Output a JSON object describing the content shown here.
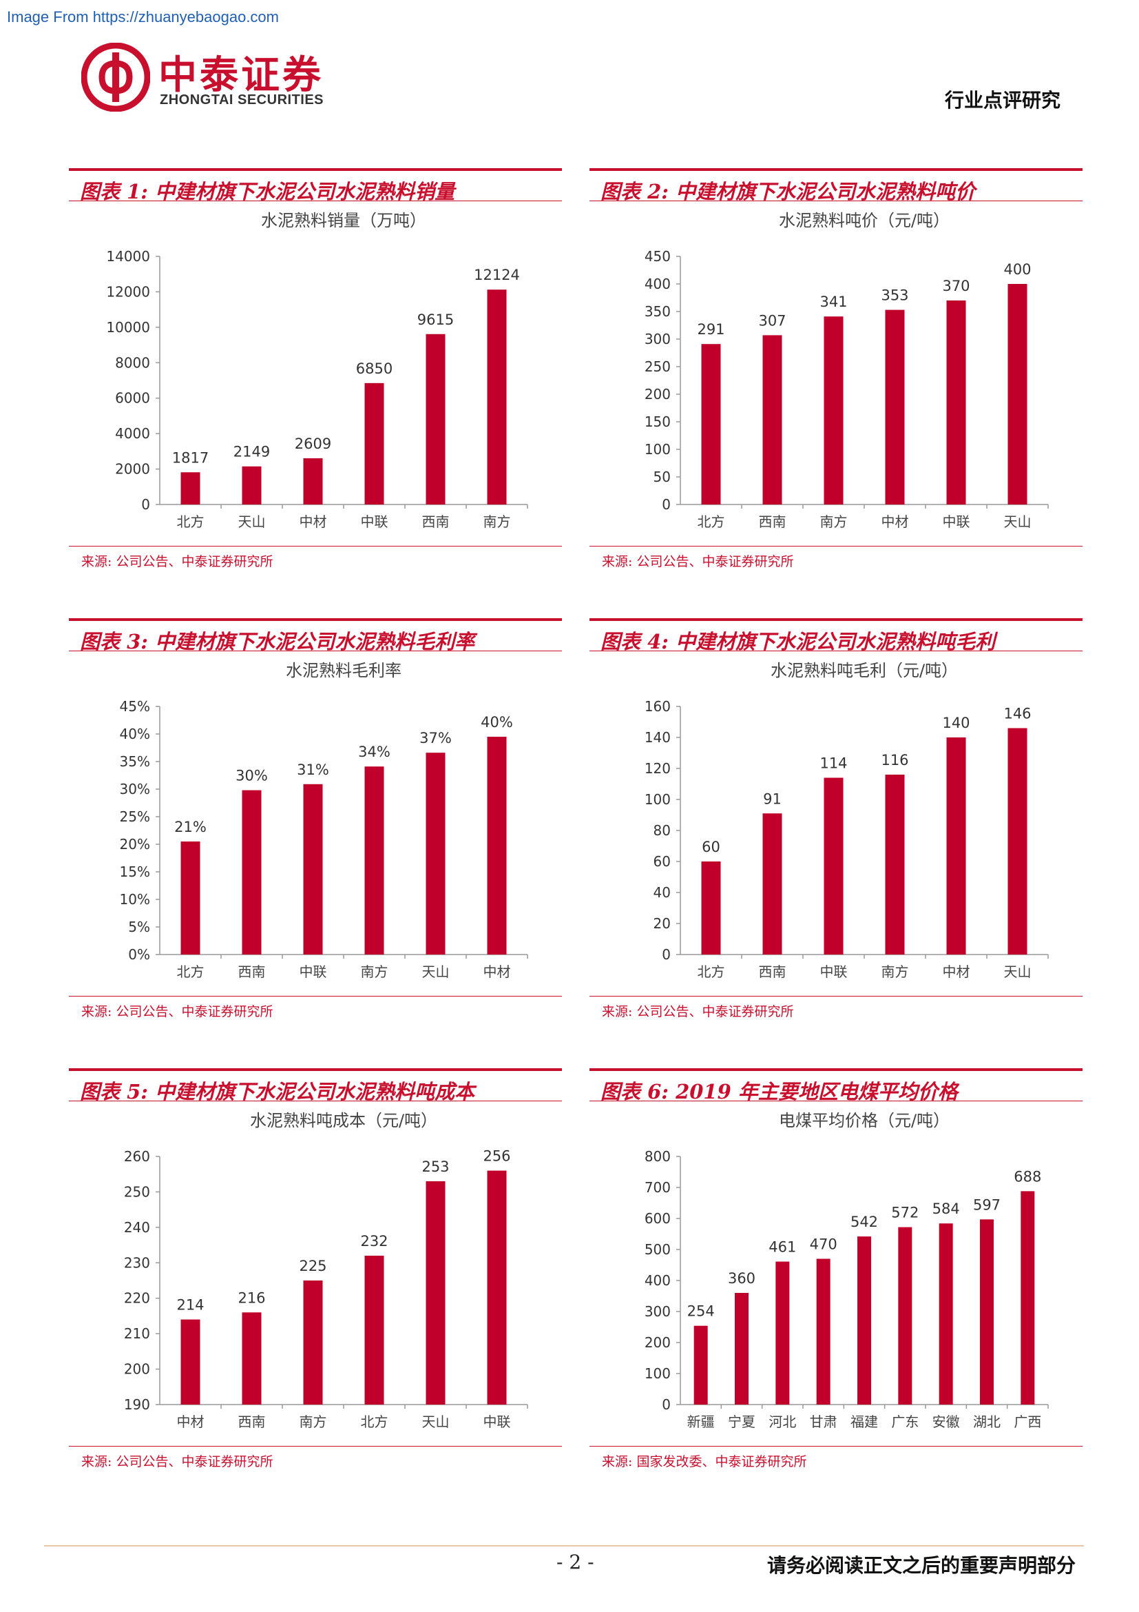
{
  "watermark": "Image From https://zhuanyebaogao.com",
  "logo": {
    "name_cn": "中泰证券",
    "name_en": "ZHONGTAI SECURITIES"
  },
  "header": {
    "right_label": "行业点评研究"
  },
  "colors": {
    "accent": "#c8102e",
    "bar": "#c0002a"
  },
  "panels": [
    {
      "title": "图表 1: 中建材旗下水泥公司水泥熟料销量",
      "source": "来源: 公司公告、中泰证券研究所",
      "chart_data": {
        "type": "bar",
        "title": "水泥熟料销量（万吨）",
        "categories": [
          "北方",
          "天山",
          "中材",
          "中联",
          "西南",
          "南方"
        ],
        "values": [
          1817,
          2149,
          2609,
          6850,
          9615,
          12124
        ],
        "labels": [
          "1817",
          "2149",
          "2609",
          "6850",
          "9615",
          "12124"
        ],
        "ylim": [
          0,
          14000
        ],
        "yticks": [
          "0",
          "2000",
          "4000",
          "6000",
          "8000",
          "10000",
          "12000",
          "14000"
        ],
        "grid": false
      }
    },
    {
      "title": "图表 2: 中建材旗下水泥公司水泥熟料吨价",
      "source": "来源: 公司公告、中泰证券研究所",
      "chart_data": {
        "type": "bar",
        "title": "水泥熟料吨价（元/吨）",
        "categories": [
          "北方",
          "西南",
          "南方",
          "中材",
          "中联",
          "天山"
        ],
        "values": [
          291,
          307,
          341,
          353,
          370,
          400
        ],
        "labels": [
          "291",
          "307",
          "341",
          "353",
          "370",
          "400"
        ],
        "ylim": [
          0,
          450
        ],
        "yticks": [
          "0",
          "50",
          "100",
          "150",
          "200",
          "250",
          "300",
          "350",
          "400",
          "450"
        ],
        "grid": false
      }
    },
    {
      "title": "图表 3: 中建材旗下水泥公司水泥熟料毛利率",
      "source": "来源: 公司公告、中泰证券研究所",
      "chart_data": {
        "type": "bar",
        "title": "水泥熟料毛利率",
        "categories": [
          "北方",
          "西南",
          "中联",
          "南方",
          "天山",
          "中材"
        ],
        "values": [
          20.5,
          29.8,
          30.9,
          34.1,
          36.6,
          39.5
        ],
        "labels": [
          "21%",
          "30%",
          "31%",
          "34%",
          "37%",
          "40%"
        ],
        "ylim": [
          0,
          45
        ],
        "yticks": [
          "0%",
          "5%",
          "10%",
          "15%",
          "20%",
          "25%",
          "30%",
          "35%",
          "40%",
          "45%"
        ],
        "grid": false
      }
    },
    {
      "title": "图表 4: 中建材旗下水泥公司水泥熟料吨毛利",
      "source": "来源: 公司公告、中泰证券研究所",
      "chart_data": {
        "type": "bar",
        "title": "水泥熟料吨毛利（元/吨）",
        "categories": [
          "北方",
          "西南",
          "中联",
          "南方",
          "中材",
          "天山"
        ],
        "values": [
          60,
          91,
          114,
          116,
          140,
          146
        ],
        "labels": [
          "60",
          "91",
          "114",
          "116",
          "140",
          "146"
        ],
        "ylim": [
          0,
          160
        ],
        "yticks": [
          "0",
          "20",
          "40",
          "60",
          "80",
          "100",
          "120",
          "140",
          "160"
        ],
        "grid": false
      }
    },
    {
      "title": "图表 5: 中建材旗下水泥公司水泥熟料吨成本",
      "source": "来源: 公司公告、中泰证券研究所",
      "chart_data": {
        "type": "bar",
        "title": "水泥熟料吨成本（元/吨）",
        "categories": [
          "中材",
          "西南",
          "南方",
          "北方",
          "天山",
          "中联"
        ],
        "values": [
          214,
          216,
          225,
          232,
          253,
          256
        ],
        "labels": [
          "214",
          "216",
          "225",
          "232",
          "253",
          "256"
        ],
        "ylim": [
          190,
          260
        ],
        "yticks": [
          "190",
          "200",
          "210",
          "220",
          "230",
          "240",
          "250",
          "260"
        ],
        "grid": false
      }
    },
    {
      "title": "图表 6: 2019 年主要地区电煤平均价格",
      "source": "来源: 国家发改委、中泰证券研究所",
      "chart_data": {
        "type": "bar",
        "title": "电煤平均价格（元/吨）",
        "categories": [
          "新疆",
          "宁夏",
          "河北",
          "甘肃",
          "福建",
          "广东",
          "安徽",
          "湖北",
          "广西"
        ],
        "values": [
          254,
          360,
          461,
          470,
          542,
          572,
          584,
          597,
          688
        ],
        "labels": [
          "254",
          "360",
          "461",
          "470",
          "542",
          "572",
          "584",
          "597",
          "688"
        ],
        "ylim": [
          0,
          800
        ],
        "yticks": [
          "0",
          "100",
          "200",
          "300",
          "400",
          "500",
          "600",
          "700",
          "800"
        ],
        "grid": false
      }
    }
  ],
  "footer": {
    "page_number": "- 2 -",
    "disclaimer": "请务必阅读正文之后的重要声明部分"
  }
}
